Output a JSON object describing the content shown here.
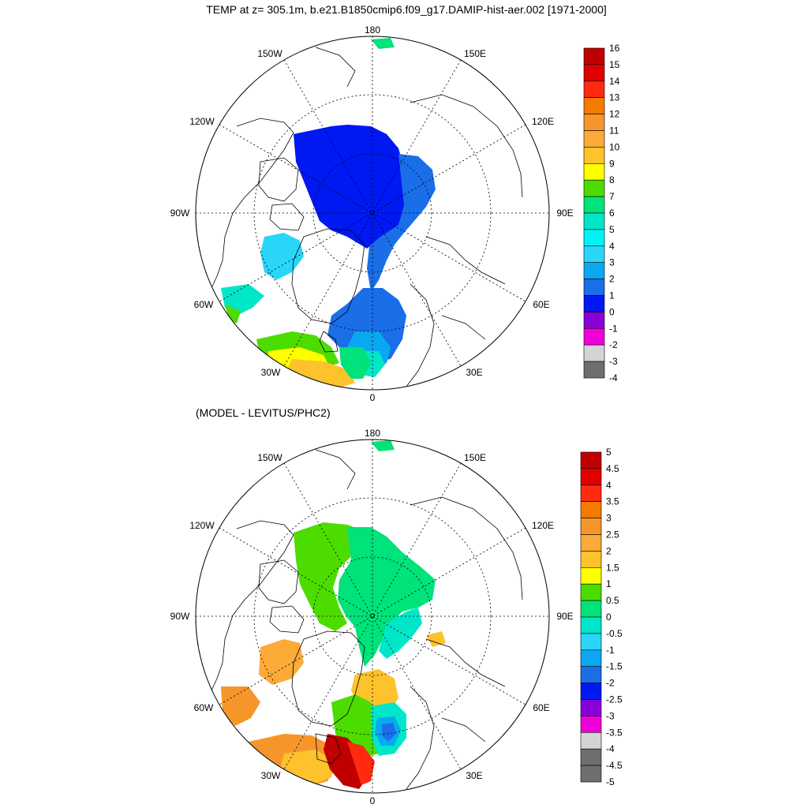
{
  "figure": {
    "title": "TEMP at z= 305.1m, b.e21.B1850cmip6.f09_g17.DAMIP-hist-aer.002 [1971-2000]"
  },
  "panels": [
    {
      "subtitle": "",
      "lon_labels": {
        "180": "180",
        "150W": "150W",
        "150E": "150E",
        "120W": "120W",
        "120E": "120E",
        "90W": "90W",
        "90E": "90E",
        "60W": "60W",
        "60E": "60E",
        "30W": "30W",
        "30E": "30E",
        "0": "0"
      },
      "colorbar": {
        "labels": [
          "16",
          "15",
          "14",
          "13",
          "12",
          "11",
          "10",
          "9",
          "8",
          "7",
          "6",
          "5",
          "4",
          "3",
          "2",
          "1",
          "0",
          "-1",
          "-2",
          "-3",
          "-4"
        ],
        "colors": [
          "#c00000",
          "#e00000",
          "#ff2a10",
          "#f47a00",
          "#f6962a",
          "#fcaa38",
          "#fdc22c",
          "#ffff00",
          "#4ddc00",
          "#00e27a",
          "#00e6c8",
          "#00f2f2",
          "#2ad6f8",
          "#0aa8f0",
          "#1a6ee8",
          "#0018f2",
          "#8800d8",
          "#f000d8",
          "#d4d4d4",
          "#6e6e6e"
        ]
      }
    },
    {
      "subtitle": "(MODEL - LEVITUS/PHC2)",
      "lon_labels": {
        "180": "180",
        "150W": "150W",
        "150E": "150E",
        "120W": "120W",
        "120E": "120E",
        "90W": "90W",
        "90E": "90E",
        "60W": "60W",
        "60E": "60E",
        "30W": "30W",
        "30E": "30E",
        "0": "0"
      },
      "colorbar": {
        "labels": [
          "5",
          "4.5",
          "4",
          "3.5",
          "3",
          "2.5",
          "2",
          "1.5",
          "1",
          "0.5",
          "0",
          "-0.5",
          "-1",
          "-1.5",
          "-2",
          "-2.5",
          "-3",
          "-3.5",
          "-4",
          "-4.5",
          "-5"
        ],
        "colors": [
          "#c00000",
          "#e00000",
          "#ff2a10",
          "#f47a00",
          "#f6962a",
          "#fcaa38",
          "#fdc22c",
          "#ffff00",
          "#4ddc00",
          "#00e27a",
          "#00e6c8",
          "#2ad6f8",
          "#0aa8f0",
          "#1a6ee8",
          "#0018f2",
          "#8800d8",
          "#f000d8",
          "#d4d4d4",
          "#6e6e6e",
          "#6e6e6e"
        ]
      }
    }
  ]
}
